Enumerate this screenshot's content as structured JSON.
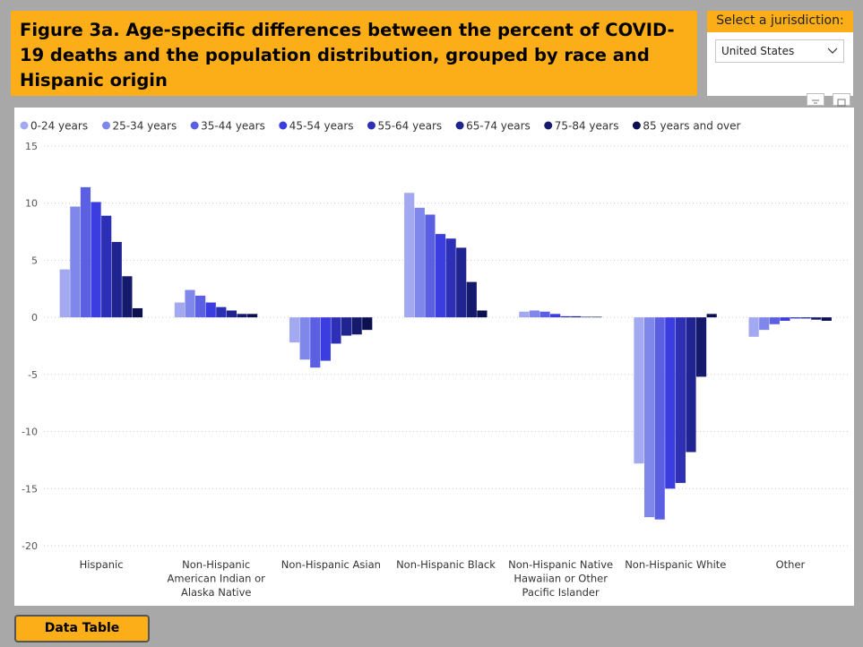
{
  "title": "Figure 3a. Age-specific differences between the percent of COVID-19 deaths and the population distribution, grouped by race and Hispanic origin",
  "jurisdiction": {
    "label": "Select a jurisdiction:",
    "selected": "United States"
  },
  "data_table_button": "Data Table",
  "icons": [
    "filter-icon",
    "focus-mode-icon",
    "chevron-down-icon"
  ],
  "colors": {
    "accent": "#fbae17",
    "background": "#a8a8a8",
    "panel": "#ffffff"
  },
  "chart_data": {
    "type": "bar",
    "title": "",
    "xlabel": "",
    "ylabel": "",
    "ylim": [
      -20,
      15
    ],
    "yticks": [
      15,
      10,
      5,
      0,
      -5,
      -10,
      -15,
      -20
    ],
    "grid": true,
    "legend_position": "top-left",
    "categories": [
      "Hispanic",
      "Non-Hispanic American Indian or Alaska Native",
      "Non-Hispanic Asian",
      "Non-Hispanic Black",
      "Non-Hispanic Native Hawaiian or Other Pacific Islander",
      "Non-Hispanic White",
      "Other"
    ],
    "category_lines": [
      [
        "Hispanic"
      ],
      [
        "Non-Hispanic",
        "American Indian or",
        "Alaska Native"
      ],
      [
        "Non-Hispanic Asian"
      ],
      [
        "Non-Hispanic Black"
      ],
      [
        "Non-Hispanic Native",
        "Hawaiian or Other",
        "Pacific Islander"
      ],
      [
        "Non-Hispanic White"
      ],
      [
        "Other"
      ]
    ],
    "series": [
      {
        "name": "0-24 years",
        "color": "#a3a9f0",
        "values": [
          4.2,
          1.3,
          -2.2,
          10.9,
          0.5,
          -12.8,
          -1.7
        ]
      },
      {
        "name": "25-34 years",
        "color": "#8087ea",
        "values": [
          9.7,
          2.4,
          -3.7,
          9.6,
          0.6,
          -17.5,
          -1.1
        ]
      },
      {
        "name": "35-44 years",
        "color": "#5b5fe2",
        "values": [
          11.4,
          1.9,
          -4.4,
          9.0,
          0.5,
          -17.7,
          -0.6
        ]
      },
      {
        "name": "45-54 years",
        "color": "#3b3de0",
        "values": [
          10.1,
          1.3,
          -3.8,
          7.3,
          0.3,
          -15.0,
          -0.3
        ]
      },
      {
        "name": "55-64 years",
        "color": "#2d2fb5",
        "values": [
          8.9,
          0.9,
          -2.3,
          6.9,
          0.1,
          -14.5,
          -0.1
        ]
      },
      {
        "name": "65-74 years",
        "color": "#202490",
        "values": [
          6.6,
          0.6,
          -1.6,
          6.1,
          0.1,
          -11.8,
          -0.1
        ]
      },
      {
        "name": "75-84 years",
        "color": "#151a6c",
        "values": [
          3.6,
          0.3,
          -1.5,
          3.1,
          0.05,
          -5.2,
          -0.2
        ]
      },
      {
        "name": "85 years and over",
        "color": "#0d1050",
        "values": [
          0.8,
          0.3,
          -1.1,
          0.6,
          0.05,
          0.3,
          -0.3
        ]
      }
    ]
  }
}
